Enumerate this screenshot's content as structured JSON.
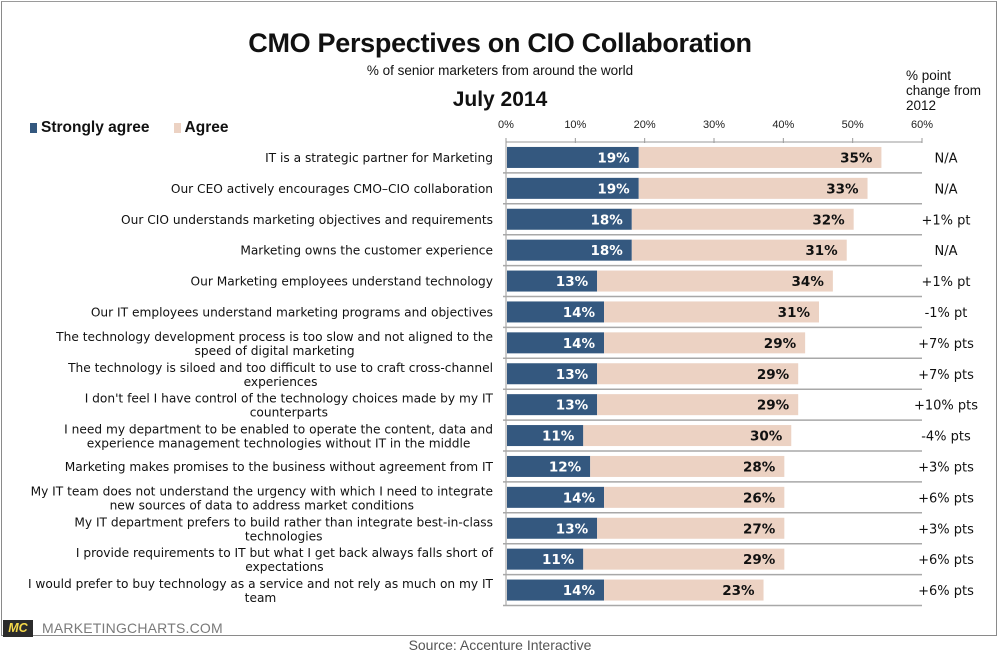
{
  "footer": {
    "logo_text": "MC",
    "site": "MARKETINGCHARTS.COM",
    "source": "Source: Accenture Interactive"
  },
  "chart_data": {
    "type": "bar",
    "orientation": "horizontal",
    "stacked": true,
    "title": "CMO Perspectives on CIO Collaboration",
    "subtitle": "% of senior marketers from around the world",
    "date_label": "July 2014",
    "xlabel": "",
    "ylabel": "",
    "xlim": [
      0,
      60
    ],
    "x_ticks": [
      "0%",
      "10%",
      "20%",
      "30%",
      "40%",
      "50%",
      "60%"
    ],
    "x_tick_values": [
      0,
      10,
      20,
      30,
      40,
      50,
      60
    ],
    "grid": false,
    "legend_position": "top-left",
    "change_column_header": "% point change from 2012",
    "colors": {
      "strongly_agree": "#34587f",
      "agree": "#ecd2c3"
    },
    "series": [
      {
        "name": "Strongly agree",
        "values": [
          19,
          19,
          18,
          18,
          13,
          14,
          14,
          13,
          13,
          11,
          12,
          14,
          13,
          11,
          14
        ]
      },
      {
        "name": "Agree",
        "values": [
          35,
          33,
          32,
          31,
          34,
          31,
          29,
          29,
          29,
          30,
          28,
          26,
          27,
          29,
          23
        ]
      }
    ],
    "categories": [
      [
        "IT is a strategic partner for Marketing"
      ],
      [
        "Our CEO actively encourages CMO–CIO collaboration"
      ],
      [
        "Our CIO understands marketing objectives and requirements"
      ],
      [
        "Marketing owns the customer experience"
      ],
      [
        "Our Marketing employees understand technology"
      ],
      [
        "Our IT employees understand marketing programs and objectives"
      ],
      [
        "The technology development process is too slow and not aligned to the",
        "speed of digital marketing"
      ],
      [
        "The technology is siloed and too difficult to use to craft cross-channel",
        "experiences"
      ],
      [
        "I don't feel I have control of the technology choices made by my IT",
        "counterparts"
      ],
      [
        "I need my department to be enabled to operate the content, data and",
        "experience management technologies without IT in the middle"
      ],
      [
        "Marketing makes promises to the business without agreement from IT"
      ],
      [
        "My IT team does not understand the urgency with which I need to integrate",
        "new sources of data to address market conditions"
      ],
      [
        "My IT department prefers to build rather than integrate best-in-class",
        "technologies"
      ],
      [
        "I provide requirements to IT but what I get back always falls short of",
        "expectations"
      ],
      [
        "I would prefer to buy technology as a service and not rely as much on my IT",
        "team"
      ]
    ],
    "change_from_2012": [
      "N/A",
      "N/A",
      "+1% pt",
      "N/A",
      "+1% pt",
      "-1% pt",
      "+7% pts",
      "+7% pts",
      "+10% pts",
      "-4% pts",
      "+3% pts",
      "+6% pts",
      "+3% pts",
      "+6% pts",
      "+6% pts"
    ]
  }
}
